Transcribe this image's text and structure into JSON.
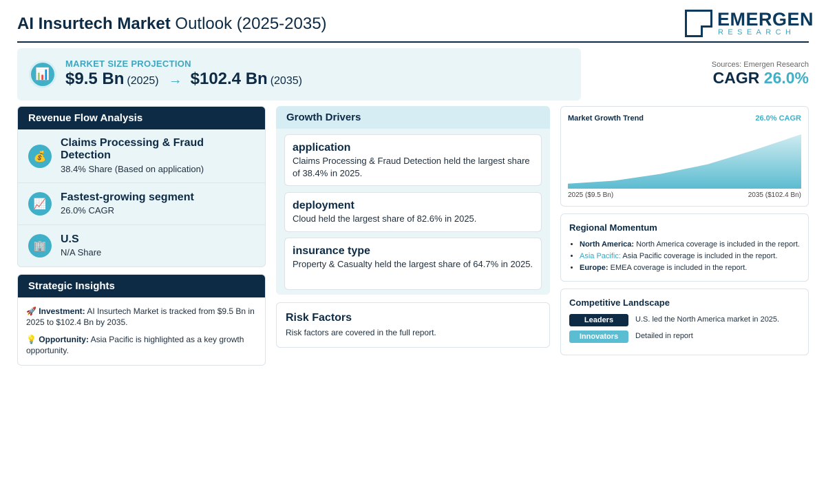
{
  "header": {
    "title_bold": "AI Insurtech Market",
    "title_rest": "Outlook (2025-2035)",
    "logo_name": "EMERGEN",
    "logo_sub": "RESEARCH"
  },
  "projection": {
    "icon": "bar-chart-icon",
    "label": "MARKET SIZE PROJECTION",
    "start_value": "$9.5 Bn",
    "start_year": "(2025)",
    "arrow": "→",
    "end_value": "$102.4 Bn",
    "end_year": "(2035)"
  },
  "sources": {
    "text": "Sources: Emergen Research",
    "cagr_label": "CAGR",
    "cagr_value": "26.0%"
  },
  "revenue_flow": {
    "title": "Revenue Flow Analysis",
    "items": [
      {
        "icon": "money-bag-icon",
        "title": "Claims Processing & Fraud Detection",
        "sub": "38.4% Share (Based on application)"
      },
      {
        "icon": "trend-up-icon",
        "title": "Fastest-growing segment",
        "sub": "26.0% CAGR"
      },
      {
        "icon": "building-icon",
        "title": "U.S",
        "sub": "N/A Share"
      }
    ]
  },
  "strategic": {
    "title": "Strategic Insights",
    "investment_label": "Investment:",
    "investment_text": "AI Insurtech Market is tracked from $9.5 Bn in 2025 to $102.4 Bn by 2035.",
    "opportunity_label": "Opportunity:",
    "opportunity_text": "Asia Pacific is highlighted as a key growth opportunity."
  },
  "drivers": {
    "title": "Growth Drivers",
    "items": [
      {
        "title": "application",
        "desc": "Claims Processing & Fraud Detection held the largest share of 38.4% in 2025."
      },
      {
        "title": "deployment",
        "desc": "Cloud held the largest share of 82.6% in 2025."
      },
      {
        "title": "insurance type",
        "desc": "Property & Casualty held the largest share of 64.7% in 2025."
      }
    ]
  },
  "risk": {
    "title": "Risk Factors",
    "desc": "Risk factors are covered in the full report."
  },
  "trend": {
    "title": "Market Growth Trend",
    "cagr": "26.0% CAGR",
    "left_label": "2025 ($9.5 Bn)",
    "right_label": "2035 ($102.4 Bn)"
  },
  "chart_data": {
    "type": "area",
    "x": [
      2025,
      2027,
      2029,
      2031,
      2033,
      2035
    ],
    "values": [
      9.5,
      15,
      28,
      46,
      73,
      102.4
    ],
    "title": "Market Growth Trend",
    "ylim": [
      0,
      102.4
    ]
  },
  "regional": {
    "title": "Regional Momentum",
    "items": [
      {
        "label": "North America:",
        "text": "North America coverage is included in the report."
      },
      {
        "label": "Asia Pacific:",
        "text": "Asia Pacific coverage is included in the report."
      },
      {
        "label": "Europe:",
        "text": "EMEA coverage is included in the report."
      }
    ]
  },
  "competitive": {
    "title": "Competitive Landscape",
    "rows": [
      {
        "tag": "Leaders",
        "text": "U.S. led the North America market in 2025."
      },
      {
        "tag": "Innovators",
        "text": "Detailed in report"
      }
    ]
  },
  "colors": {
    "navy": "#0d2b45",
    "teal": "#3fb0c8",
    "light_bg": "#eaf5f8"
  }
}
